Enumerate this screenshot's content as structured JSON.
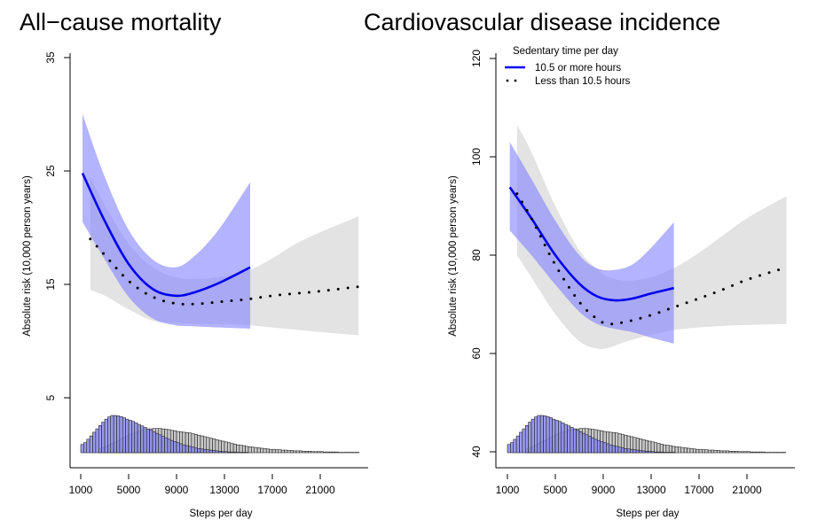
{
  "chart_data": [
    {
      "type": "line",
      "title": "All−cause mortality",
      "xlabel": "Steps per day",
      "ylabel": "Absolute risk (10,000 person years)",
      "xlim": [
        1000,
        25000
      ],
      "ylim": [
        0,
        35
      ],
      "xticks": [
        1000,
        5000,
        9000,
        13000,
        17000,
        21000
      ],
      "xtick_labels": [
        "1000",
        "5000",
        "9000",
        "13000",
        "17000",
        "21000"
      ],
      "yticks": [
        5,
        15,
        25,
        35
      ],
      "ytick_labels": [
        "5",
        "15",
        "25",
        "35"
      ],
      "grid": false,
      "series": [
        {
          "name": "10.5 or more hours",
          "style": "solid",
          "color": "#0000ee",
          "x": [
            1150,
            3000,
            5000,
            7000,
            8900,
            10500,
            12500,
            15150
          ],
          "y": [
            24.8,
            20.6,
            16.8,
            14.6,
            14.0,
            14.3,
            15.1,
            16.5
          ],
          "ci_lower": [
            20.5,
            17.2,
            13.9,
            12.0,
            11.4,
            11.3,
            11.2,
            11.1
          ],
          "ci_upper": [
            30.0,
            24.5,
            19.8,
            17.2,
            16.5,
            17.5,
            19.8,
            24.0
          ],
          "ci_color": "#8080ff"
        },
        {
          "name": "Less than 10.5 hours",
          "style": "dotted",
          "color": "#000000",
          "x": [
            1800,
            3000,
            5000,
            7000,
            9000,
            11000,
            13000,
            15000,
            17000,
            19000,
            21000,
            24200
          ],
          "y": [
            19.0,
            17.6,
            15.3,
            13.9,
            13.3,
            13.3,
            13.5,
            13.7,
            14.0,
            14.2,
            14.4,
            14.8
          ],
          "ci_lower": [
            14.5,
            14.0,
            12.8,
            11.8,
            11.6,
            11.5,
            11.5,
            11.4,
            11.2,
            11.0,
            10.8,
            10.5
          ],
          "ci_upper": [
            24.5,
            22.0,
            18.6,
            16.5,
            15.6,
            15.5,
            15.7,
            16.2,
            17.3,
            18.6,
            19.6,
            21.0
          ],
          "ci_color": "#d9d9d9"
        }
      ],
      "histograms": [
        {
          "name": "10.5 or more hours",
          "color": "#8a8aef",
          "x_start": 1000,
          "bin_width": 250,
          "relative_heights": [
            0.22,
            0.27,
            0.36,
            0.45,
            0.55,
            0.64,
            0.73,
            0.82,
            0.9,
            0.96,
            1.0,
            1.0,
            0.99,
            0.97,
            0.94,
            0.9,
            0.87,
            0.84,
            0.8,
            0.76,
            0.72,
            0.68,
            0.64,
            0.6,
            0.56,
            0.52,
            0.48,
            0.44,
            0.4,
            0.36,
            0.33,
            0.3,
            0.27,
            0.24,
            0.21,
            0.19,
            0.17,
            0.15,
            0.13,
            0.11,
            0.1,
            0.09,
            0.08,
            0.07,
            0.06,
            0.05,
            0.04,
            0.03,
            0.03,
            0.02,
            0.02,
            0.02,
            0.01,
            0.01,
            0.01,
            0.01
          ]
        },
        {
          "name": "Less than 10.5 hours",
          "color": "#c8c8c8",
          "x_start": 2500,
          "bin_width": 250,
          "relative_heights": [
            0.1,
            0.13,
            0.17,
            0.21,
            0.25,
            0.29,
            0.33,
            0.37,
            0.41,
            0.45,
            0.49,
            0.52,
            0.55,
            0.57,
            0.6,
            0.62,
            0.63,
            0.64,
            0.65,
            0.65,
            0.65,
            0.64,
            0.63,
            0.62,
            0.6,
            0.59,
            0.57,
            0.56,
            0.55,
            0.54,
            0.53,
            0.51,
            0.49,
            0.47,
            0.45,
            0.43,
            0.41,
            0.39,
            0.37,
            0.35,
            0.33,
            0.31,
            0.29,
            0.27,
            0.25,
            0.23,
            0.21,
            0.2,
            0.19,
            0.17,
            0.16,
            0.15,
            0.14,
            0.13,
            0.12,
            0.11,
            0.1,
            0.09,
            0.09,
            0.08,
            0.08,
            0.07,
            0.07,
            0.06,
            0.06,
            0.05,
            0.05,
            0.05,
            0.04,
            0.04,
            0.04,
            0.03,
            0.03,
            0.03,
            0.03,
            0.02,
            0.02,
            0.02,
            0.02,
            0.02,
            0.01,
            0.01,
            0.01,
            0.01,
            0.01,
            0.01,
            0.01
          ]
        }
      ]
    },
    {
      "type": "line",
      "title": "Cardiovascular disease incidence",
      "xlabel": "Steps per day",
      "ylabel": "Absolute risk (10,000 person years)",
      "xlim": [
        1000,
        25000
      ],
      "ylim": [
        35,
        120
      ],
      "xticks": [
        1000,
        5000,
        9000,
        13000,
        17000,
        21000
      ],
      "xtick_labels": [
        "1000",
        "5000",
        "9000",
        "13000",
        "17000",
        "21000"
      ],
      "yticks": [
        40,
        60,
        80,
        100,
        120
      ],
      "ytick_labels": [
        "40",
        "60",
        "80",
        "100",
        "120"
      ],
      "grid": false,
      "legend": {
        "title": "Sedentary time per day",
        "position": "top-left",
        "entries": [
          "10.5 or more hours",
          "Less than 10.5 hours"
        ]
      },
      "series": [
        {
          "name": "10.5 or more hours",
          "style": "solid",
          "color": "#0000ee",
          "x": [
            1200,
            3000,
            5000,
            7000,
            8500,
            10000,
            11500,
            13000,
            14900
          ],
          "y": [
            93.8,
            87.5,
            80.0,
            74.2,
            71.6,
            70.8,
            71.2,
            72.2,
            73.3
          ],
          "ci_lower": [
            85.0,
            80.0,
            74.0,
            68.5,
            66.0,
            65.0,
            64.3,
            63.2,
            62.0
          ],
          "ci_upper": [
            103.0,
            95.5,
            87.0,
            80.0,
            77.3,
            77.0,
            78.2,
            81.5,
            86.7
          ],
          "ci_color": "#8080ff"
        },
        {
          "name": "Less than 10.5 hours",
          "style": "dotted",
          "color": "#000000",
          "x": [
            1800,
            3000,
            5000,
            7000,
            8500,
            9500,
            11000,
            13000,
            15000,
            17000,
            19000,
            21000,
            24300
          ],
          "y": [
            92.5,
            87.5,
            78.0,
            70.5,
            67.0,
            66.0,
            66.5,
            67.8,
            69.5,
            71.2,
            73.0,
            75.0,
            77.5
          ],
          "ci_lower": [
            80.0,
            75.5,
            68.0,
            62.5,
            61.0,
            61.2,
            62.5,
            63.8,
            64.8,
            65.3,
            65.6,
            65.8,
            66.0
          ],
          "ci_upper": [
            106.5,
            101.0,
            90.0,
            81.0,
            77.2,
            75.5,
            74.8,
            75.5,
            77.5,
            80.5,
            84.0,
            87.5,
            92.0
          ],
          "ci_color": "#d9d9d9"
        }
      ],
      "histograms": [
        {
          "name": "10.5 or more hours",
          "color": "#8a8aef",
          "x_start": 1000,
          "bin_width": 250,
          "relative_heights": [
            0.22,
            0.27,
            0.36,
            0.45,
            0.55,
            0.64,
            0.73,
            0.82,
            0.9,
            0.96,
            1.0,
            1.0,
            0.99,
            0.97,
            0.94,
            0.9,
            0.87,
            0.84,
            0.8,
            0.76,
            0.72,
            0.68,
            0.64,
            0.6,
            0.56,
            0.52,
            0.48,
            0.44,
            0.4,
            0.36,
            0.33,
            0.3,
            0.27,
            0.24,
            0.21,
            0.19,
            0.17,
            0.15,
            0.13,
            0.11,
            0.1,
            0.09,
            0.08,
            0.07,
            0.06,
            0.05,
            0.04,
            0.03,
            0.03,
            0.02,
            0.02,
            0.02,
            0.01,
            0.01,
            0.01,
            0.01
          ]
        },
        {
          "name": "Less than 10.5 hours",
          "color": "#c8c8c8",
          "x_start": 2500,
          "bin_width": 250,
          "relative_heights": [
            0.1,
            0.13,
            0.17,
            0.21,
            0.25,
            0.29,
            0.33,
            0.37,
            0.41,
            0.45,
            0.49,
            0.52,
            0.55,
            0.57,
            0.6,
            0.62,
            0.63,
            0.64,
            0.65,
            0.65,
            0.65,
            0.64,
            0.63,
            0.62,
            0.6,
            0.59,
            0.57,
            0.56,
            0.55,
            0.54,
            0.53,
            0.51,
            0.49,
            0.47,
            0.45,
            0.43,
            0.41,
            0.39,
            0.37,
            0.35,
            0.33,
            0.31,
            0.29,
            0.27,
            0.25,
            0.23,
            0.21,
            0.2,
            0.19,
            0.17,
            0.16,
            0.15,
            0.14,
            0.13,
            0.12,
            0.11,
            0.1,
            0.09,
            0.09,
            0.08,
            0.08,
            0.07,
            0.07,
            0.06,
            0.06,
            0.05,
            0.05,
            0.05,
            0.04,
            0.04,
            0.04,
            0.03,
            0.03,
            0.03,
            0.03,
            0.02,
            0.02,
            0.02,
            0.02,
            0.02,
            0.01,
            0.01,
            0.01,
            0.01,
            0.01,
            0.01,
            0.01
          ]
        }
      ]
    }
  ]
}
